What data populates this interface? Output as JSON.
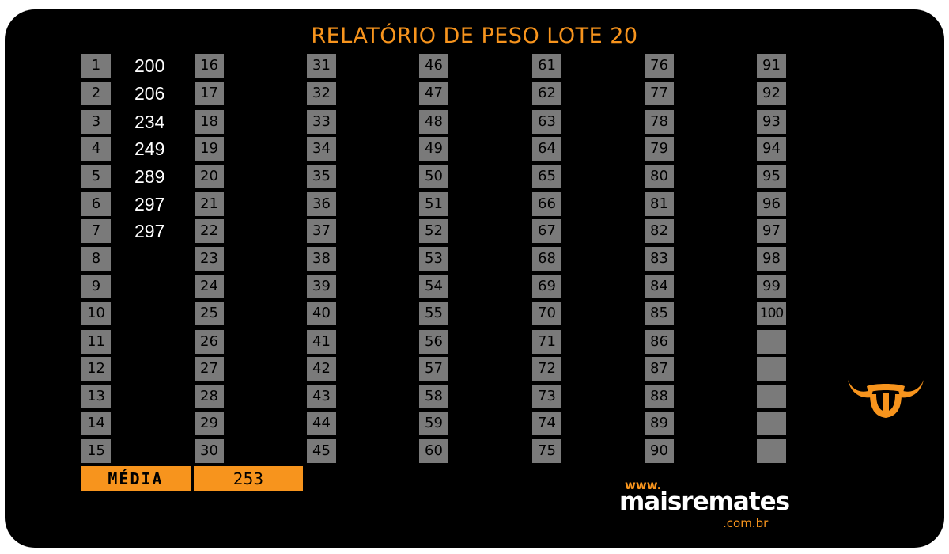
{
  "title": "RELATÓRIO DE PESO LOTE 20",
  "columns": [
    [
      "1",
      "2",
      "3",
      "4",
      "5",
      "6",
      "7",
      "8",
      "9",
      "10",
      "11",
      "12",
      "13",
      "14",
      "15"
    ],
    [
      "16",
      "17",
      "18",
      "19",
      "20",
      "21",
      "22",
      "23",
      "24",
      "25",
      "26",
      "27",
      "28",
      "29",
      "30"
    ],
    [
      "31",
      "32",
      "33",
      "34",
      "35",
      "36",
      "37",
      "38",
      "39",
      "40",
      "41",
      "42",
      "43",
      "44",
      "45"
    ],
    [
      "46",
      "47",
      "48",
      "49",
      "50",
      "51",
      "52",
      "53",
      "54",
      "55",
      "56",
      "57",
      "58",
      "59",
      "60"
    ],
    [
      "61",
      "62",
      "63",
      "64",
      "65",
      "66",
      "67",
      "68",
      "69",
      "70",
      "71",
      "72",
      "73",
      "74",
      "75"
    ],
    [
      "76",
      "77",
      "78",
      "79",
      "80",
      "81",
      "82",
      "83",
      "84",
      "85",
      "86",
      "87",
      "88",
      "89",
      "90"
    ],
    [
      "91",
      "92",
      "93",
      "94",
      "95",
      "96",
      "97",
      "98",
      "99",
      "100",
      "",
      "",
      "",
      "",
      ""
    ]
  ],
  "weights": [
    "200",
    "206",
    "234",
    "249",
    "289",
    "297",
    "297"
  ],
  "media": {
    "label": "MÉDIA",
    "value": "253"
  },
  "brand": {
    "www": "www.",
    "name": "maisremates",
    "tld": ".com.br"
  },
  "colors": {
    "accent": "#f7941d",
    "cell": "#7a7a7a",
    "background": "#000000"
  },
  "icons": {
    "logo": "bull-head-icon"
  }
}
